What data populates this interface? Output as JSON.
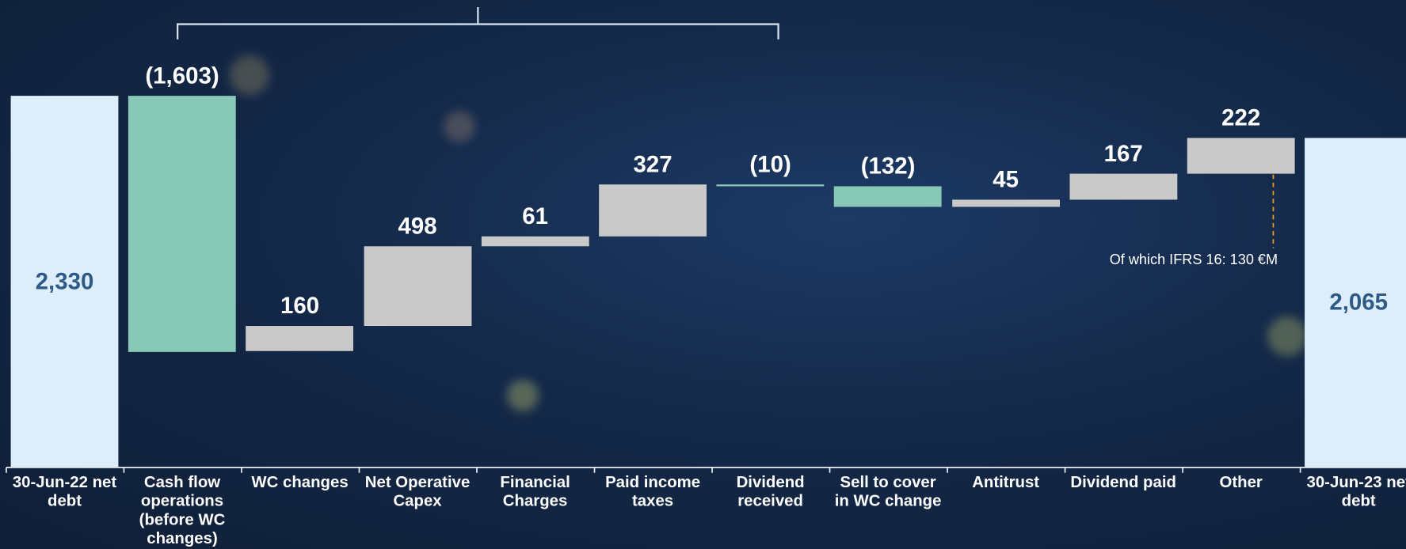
{
  "chart_data": {
    "type": "waterfall",
    "categories": [
      "30-Jun-22 net debt",
      "Cash flow operations (before WC changes)",
      "WC changes",
      "Net Operative Capex",
      "Financial Charges",
      "Paid income taxes",
      "Dividend received",
      "Sell to cover in WC change",
      "Antitrust",
      "Dividend paid",
      "Other",
      "30-Jun-23 net debt"
    ],
    "values": [
      2330,
      -1603,
      160,
      498,
      61,
      327,
      -10,
      -132,
      45,
      167,
      222,
      2065
    ],
    "value_labels": [
      "2,330",
      "(1,603)",
      "160",
      "498",
      "61",
      "327",
      "(10)",
      "(132)",
      "45",
      "167",
      "222",
      "2,065"
    ],
    "colors": {
      "total": "#ddeefa",
      "increase": "#c9c9c9",
      "decrease": "#88c8b6"
    },
    "annotation": "Of which IFRS 16: 130 €M"
  }
}
